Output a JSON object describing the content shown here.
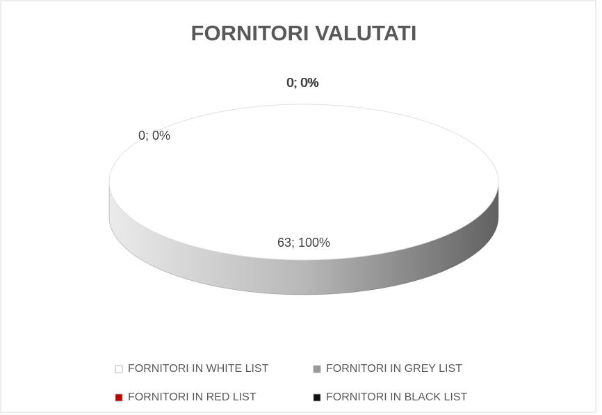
{
  "chart_data": {
    "type": "pie",
    "title": "FORNITORI VALUTATI",
    "categories": [
      "FORNITORI IN WHITE LIST",
      "FORNITORI IN GREY LIST",
      "FORNITORI IN RED LIST",
      "FORNITORI IN BLACK LIST"
    ],
    "values": [
      63,
      0,
      0,
      0
    ],
    "value_labels": [
      "63; 100%",
      "0; 0%",
      "0; 0%",
      "0; 0%"
    ],
    "colors": [
      "#ffffff",
      "#9a9a9a",
      "#c00000",
      "#111111"
    ],
    "legend": "bottom"
  }
}
